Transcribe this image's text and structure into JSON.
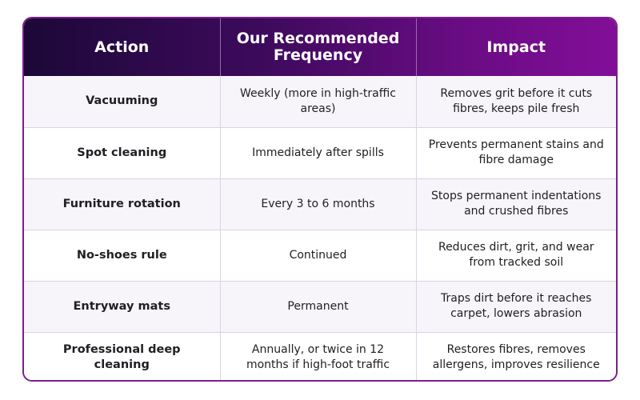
{
  "table": {
    "headers": [
      "Action",
      "Our Recommended Frequency",
      "Impact"
    ],
    "rows": [
      {
        "action": "Vacuuming",
        "frequency": "Weekly (more in high-traffic areas)",
        "impact": "Removes grit before it cuts fibres, keeps pile fresh"
      },
      {
        "action": "Spot cleaning",
        "frequency": "Immediately after spills",
        "impact": "Prevents permanent stains and fibre damage"
      },
      {
        "action": "Furniture rotation",
        "frequency": "Every 3 to 6 months",
        "impact": "Stops permanent indentations and crushed fibres"
      },
      {
        "action": "No-shoes rule",
        "frequency": "Continued",
        "impact": "Reduces dirt, grit, and wear from tracked soil"
      },
      {
        "action": "Entryway mats",
        "frequency": "Permanent",
        "impact": "Traps dirt before it reaches carpet, lowers abrasion"
      },
      {
        "action": "Professional deep cleaning",
        "frequency": "Annually, or twice in 12 months if high-foot traffic",
        "impact": "Restores fibres, removes allergens, improves resilience"
      }
    ]
  },
  "colors": {
    "header_start": "#1c0838",
    "header_end": "#820e98",
    "border": "#7b1e8e"
  }
}
